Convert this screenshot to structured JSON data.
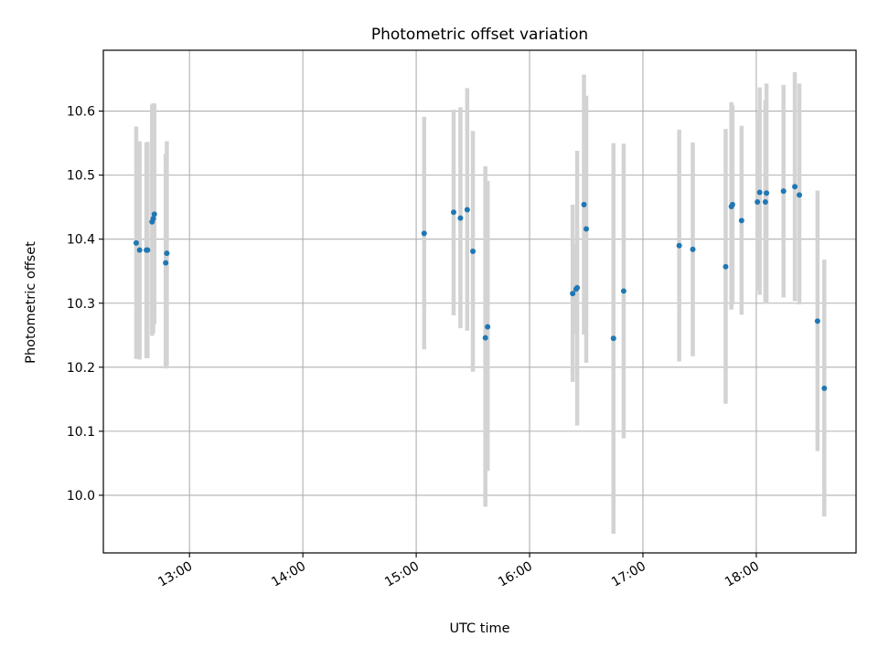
{
  "chart_data": {
    "type": "scatter",
    "title": "Photometric offset variation",
    "xlabel": "UTC time",
    "ylabel": "Photometric offset",
    "x_unit": "hours UTC",
    "xlim": [
      12.24,
      18.88
    ],
    "ylim": [
      9.91,
      10.695
    ],
    "x_ticks": [
      {
        "value": 13,
        "label": "13:00"
      },
      {
        "value": 14,
        "label": "14:00"
      },
      {
        "value": 15,
        "label": "15:00"
      },
      {
        "value": 16,
        "label": "16:00"
      },
      {
        "value": 17,
        "label": "17:00"
      },
      {
        "value": 18,
        "label": "18:00"
      }
    ],
    "y_ticks": [
      {
        "value": 10.0,
        "label": "10.0"
      },
      {
        "value": 10.1,
        "label": "10.1"
      },
      {
        "value": 10.2,
        "label": "10.2"
      },
      {
        "value": 10.3,
        "label": "10.3"
      },
      {
        "value": 10.4,
        "label": "10.4"
      },
      {
        "value": 10.5,
        "label": "10.5"
      },
      {
        "value": 10.6,
        "label": "10.6"
      }
    ],
    "grid": true,
    "colors": {
      "marker": "#1f77b4",
      "errorbar": "#d3d3d3",
      "grid": "#b0b0b0",
      "axes": "#000000"
    },
    "points": [
      {
        "x": 12.53,
        "y": 10.394,
        "ylow": 10.213,
        "yhigh": 10.576
      },
      {
        "x": 12.56,
        "y": 10.383,
        "ylow": 10.212,
        "yhigh": 10.553
      },
      {
        "x": 12.62,
        "y": 10.383,
        "ylow": 10.214,
        "yhigh": 10.551
      },
      {
        "x": 12.63,
        "y": 10.383,
        "ylow": 10.214,
        "yhigh": 10.552
      },
      {
        "x": 12.67,
        "y": 10.427,
        "ylow": 10.249,
        "yhigh": 10.61
      },
      {
        "x": 12.68,
        "y": 10.432,
        "ylow": 10.253,
        "yhigh": 10.612
      },
      {
        "x": 12.69,
        "y": 10.439,
        "ylow": 10.267,
        "yhigh": 10.612
      },
      {
        "x": 12.79,
        "y": 10.363,
        "ylow": 10.198,
        "yhigh": 10.533
      },
      {
        "x": 12.8,
        "y": 10.378,
        "ylow": 10.202,
        "yhigh": 10.553
      },
      {
        "x": 15.07,
        "y": 10.409,
        "ylow": 10.228,
        "yhigh": 10.591
      },
      {
        "x": 15.33,
        "y": 10.442,
        "ylow": 10.281,
        "yhigh": 10.602
      },
      {
        "x": 15.39,
        "y": 10.433,
        "ylow": 10.261,
        "yhigh": 10.606
      },
      {
        "x": 15.45,
        "y": 10.446,
        "ylow": 10.257,
        "yhigh": 10.636
      },
      {
        "x": 15.5,
        "y": 10.381,
        "ylow": 10.193,
        "yhigh": 10.569
      },
      {
        "x": 15.61,
        "y": 10.246,
        "ylow": 9.982,
        "yhigh": 10.514
      },
      {
        "x": 15.63,
        "y": 10.263,
        "ylow": 10.038,
        "yhigh": 10.491
      },
      {
        "x": 16.38,
        "y": 10.315,
        "ylow": 10.177,
        "yhigh": 10.454
      },
      {
        "x": 16.41,
        "y": 10.322,
        "ylow": 10.251,
        "yhigh": 10.393
      },
      {
        "x": 16.42,
        "y": 10.324,
        "ylow": 10.109,
        "yhigh": 10.538
      },
      {
        "x": 16.48,
        "y": 10.454,
        "ylow": 10.251,
        "yhigh": 10.657
      },
      {
        "x": 16.5,
        "y": 10.416,
        "ylow": 10.207,
        "yhigh": 10.624
      },
      {
        "x": 16.74,
        "y": 10.245,
        "ylow": 9.94,
        "yhigh": 10.55
      },
      {
        "x": 16.83,
        "y": 10.319,
        "ylow": 10.089,
        "yhigh": 10.549
      },
      {
        "x": 17.32,
        "y": 10.39,
        "ylow": 10.209,
        "yhigh": 10.571
      },
      {
        "x": 17.44,
        "y": 10.384,
        "ylow": 10.217,
        "yhigh": 10.551
      },
      {
        "x": 17.73,
        "y": 10.357,
        "ylow": 10.143,
        "yhigh": 10.572
      },
      {
        "x": 17.78,
        "y": 10.451,
        "ylow": 10.29,
        "yhigh": 10.614
      },
      {
        "x": 17.79,
        "y": 10.454,
        "ylow": 10.298,
        "yhigh": 10.609
      },
      {
        "x": 17.87,
        "y": 10.429,
        "ylow": 10.282,
        "yhigh": 10.577
      },
      {
        "x": 18.01,
        "y": 10.458,
        "ylow": 10.32,
        "yhigh": 10.597
      },
      {
        "x": 18.03,
        "y": 10.473,
        "ylow": 10.313,
        "yhigh": 10.637
      },
      {
        "x": 18.08,
        "y": 10.458,
        "ylow": 10.299,
        "yhigh": 10.617
      },
      {
        "x": 18.09,
        "y": 10.472,
        "ylow": 10.3,
        "yhigh": 10.643
      },
      {
        "x": 18.24,
        "y": 10.475,
        "ylow": 10.309,
        "yhigh": 10.641
      },
      {
        "x": 18.34,
        "y": 10.482,
        "ylow": 10.303,
        "yhigh": 10.661
      },
      {
        "x": 18.38,
        "y": 10.469,
        "ylow": 10.298,
        "yhigh": 10.643
      },
      {
        "x": 18.54,
        "y": 10.272,
        "ylow": 10.069,
        "yhigh": 10.476
      },
      {
        "x": 18.6,
        "y": 10.167,
        "ylow": 9.967,
        "yhigh": 10.368
      }
    ]
  }
}
